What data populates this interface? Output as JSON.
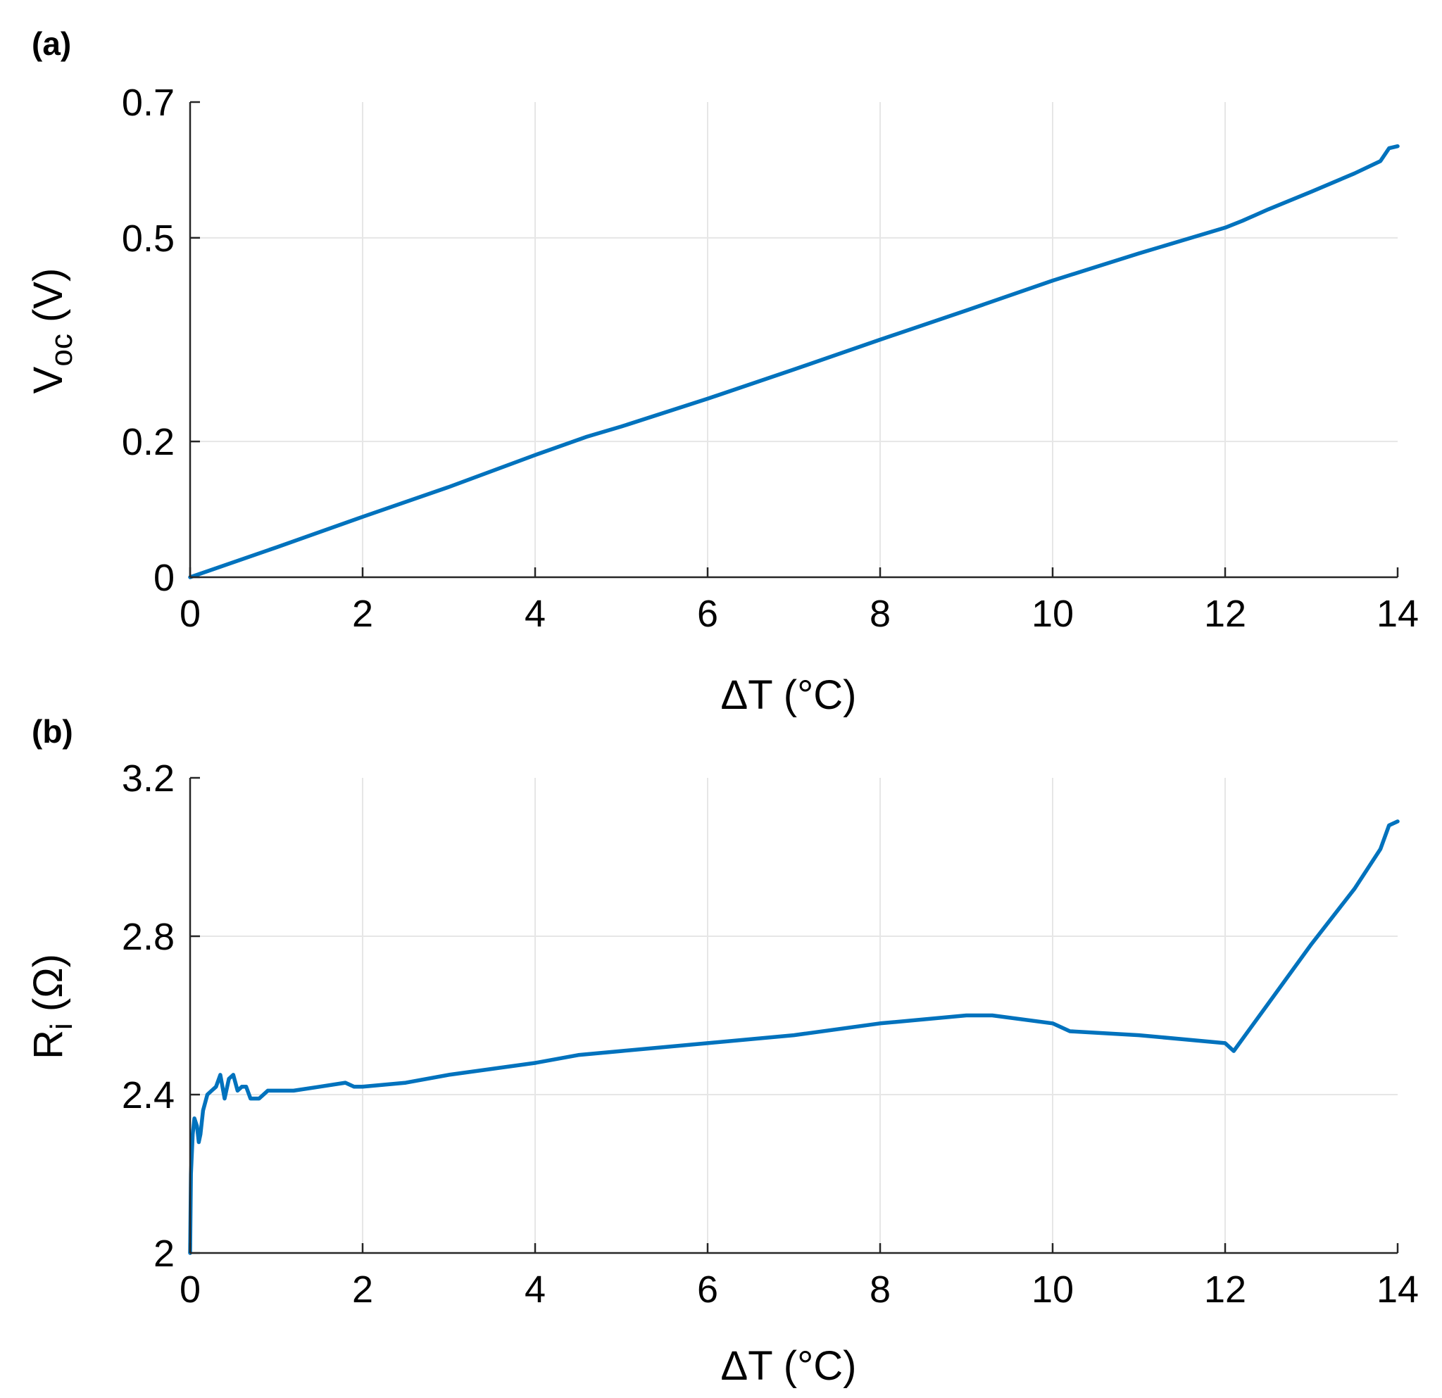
{
  "colors": {
    "series": "#0072BD",
    "axis": "#262626",
    "grid": "#e6e6e6"
  },
  "chart_data": [
    {
      "panel": "(a)",
      "type": "line",
      "xlabel": "ΔT (°C)",
      "ylabel_main": "V",
      "ylabel_sub": "oc",
      "ylabel_unit": "(V)",
      "xlim": [
        0,
        14
      ],
      "ylim": [
        0,
        0.7
      ],
      "xticks": [
        0,
        2,
        4,
        6,
        8,
        10,
        12,
        14
      ],
      "xtick_labels": [
        "0",
        "2",
        "4",
        "6",
        "8",
        "10",
        "12",
        "14"
      ],
      "yticks": [
        0,
        0.2,
        0.5,
        0.7
      ],
      "ytick_labels": [
        "0",
        "0.2",
        "0.5",
        "0.7"
      ],
      "grid": true,
      "series": [
        {
          "name": "Voc",
          "x": [
            0,
            1,
            2,
            3,
            4,
            4.6,
            5,
            6,
            7,
            8,
            9,
            10,
            11,
            12,
            12.2,
            12.5,
            13,
            13.5,
            13.8,
            13.9,
            14
          ],
          "y": [
            0,
            0.044,
            0.089,
            0.133,
            0.18,
            0.207,
            0.222,
            0.263,
            0.306,
            0.35,
            0.393,
            0.437,
            0.477,
            0.515,
            0.525,
            0.542,
            0.568,
            0.595,
            0.613,
            0.632,
            0.635
          ]
        }
      ]
    },
    {
      "panel": "(b)",
      "type": "line",
      "xlabel": "ΔT (°C)",
      "ylabel_main": "R",
      "ylabel_sub": "i",
      "ylabel_unit": "(Ω)",
      "xlim": [
        0,
        14
      ],
      "ylim": [
        2,
        3.2
      ],
      "xticks": [
        0,
        2,
        4,
        6,
        8,
        10,
        12,
        14
      ],
      "xtick_labels": [
        "0",
        "2",
        "4",
        "6",
        "8",
        "10",
        "12",
        "14"
      ],
      "yticks": [
        2,
        2.4,
        2.8,
        3.2
      ],
      "ytick_labels": [
        "2",
        "2.4",
        "2.8",
        "3.2"
      ],
      "grid": true,
      "series": [
        {
          "name": "Ri",
          "x": [
            0,
            0.01,
            0.03,
            0.05,
            0.08,
            0.1,
            0.12,
            0.15,
            0.2,
            0.25,
            0.3,
            0.35,
            0.4,
            0.45,
            0.5,
            0.55,
            0.6,
            0.65,
            0.7,
            0.8,
            0.9,
            1.0,
            1.2,
            1.5,
            1.8,
            1.9,
            2.0,
            2.5,
            3,
            4,
            4.5,
            5,
            6,
            7,
            8,
            9,
            9.3,
            10,
            10.2,
            11,
            12,
            12.1,
            12.5,
            13,
            13.5,
            13.8,
            13.9,
            14
          ],
          "y": [
            2.0,
            2.2,
            2.3,
            2.34,
            2.32,
            2.28,
            2.3,
            2.36,
            2.4,
            2.41,
            2.42,
            2.45,
            2.39,
            2.44,
            2.45,
            2.41,
            2.42,
            2.42,
            2.39,
            2.39,
            2.41,
            2.41,
            2.41,
            2.42,
            2.43,
            2.42,
            2.42,
            2.43,
            2.45,
            2.48,
            2.5,
            2.51,
            2.53,
            2.55,
            2.58,
            2.6,
            2.6,
            2.58,
            2.56,
            2.55,
            2.53,
            2.51,
            2.63,
            2.78,
            2.92,
            3.02,
            3.08,
            3.09
          ]
        }
      ]
    }
  ]
}
